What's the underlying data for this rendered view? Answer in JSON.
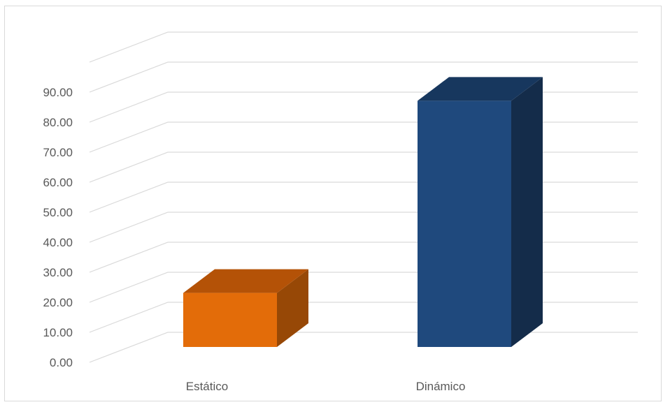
{
  "chart_data": {
    "type": "bar",
    "style": "3d-column",
    "title": "",
    "xlabel": "",
    "ylabel": "",
    "categories": [
      "Estático",
      "Dinámico"
    ],
    "values": [
      18.0,
      82.0
    ],
    "ylim": [
      0,
      100
    ],
    "ytick_values": [
      0,
      10,
      20,
      30,
      40,
      50,
      60,
      70,
      80,
      90
    ],
    "ytick_labels": [
      "0.00",
      "10.00",
      "20.00",
      "30.00",
      "40.00",
      "50.00",
      "60.00",
      "70.00",
      "80.00",
      "90.00"
    ],
    "grid": true,
    "legend": "none",
    "colors": {
      "bars": [
        "#E36C09",
        "#1F497D"
      ],
      "bar_tops": [
        "#B45207",
        "#17375E"
      ],
      "bar_sides": [
        "#974806",
        "#142C4A"
      ],
      "grid": "#D9D9D9",
      "text": "#595959"
    }
  }
}
